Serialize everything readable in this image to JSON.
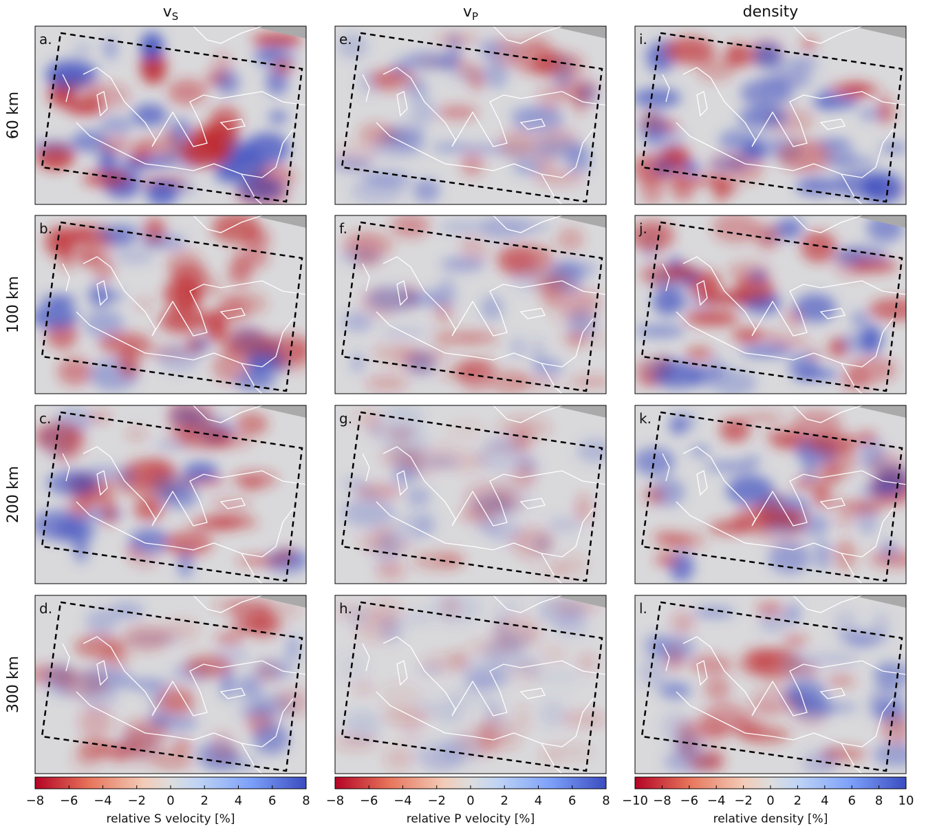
{
  "columns": [
    {
      "title": {
        "main": "v",
        "sub": "S"
      },
      "panels": [
        "a.",
        "b.",
        "c.",
        "d."
      ],
      "colorbar": {
        "lim": [
          -8,
          8
        ],
        "ticks": [
          {
            "value": -8,
            "label": "−8"
          },
          {
            "value": -6,
            "label": "−6"
          },
          {
            "value": -4,
            "label": "−4"
          },
          {
            "value": -2,
            "label": "−2"
          },
          0,
          2,
          4,
          6,
          8
        ],
        "label": "relative S velocity [%]"
      }
    },
    {
      "title": {
        "main": "v",
        "sub": "P"
      },
      "panels": [
        "e.",
        "f.",
        "g.",
        "h."
      ],
      "colorbar": {
        "lim": [
          -8,
          8
        ],
        "ticks": [
          {
            "value": -8,
            "label": "−8"
          },
          {
            "value": -6,
            "label": "−6"
          },
          {
            "value": -4,
            "label": "−4"
          },
          {
            "value": -2,
            "label": "−2"
          },
          0,
          2,
          4,
          6,
          8
        ],
        "label": "relative P velocity [%]"
      }
    },
    {
      "title": {
        "main": "density"
      },
      "panels": [
        "i.",
        "j.",
        "k.",
        "l."
      ],
      "colorbar": {
        "lim": [
          -10,
          10
        ],
        "ticks": [
          {
            "value": -10,
            "label": "−10"
          },
          {
            "value": -8,
            "label": "−8"
          },
          {
            "value": -6,
            "label": "−6"
          },
          {
            "value": -4,
            "label": "−4"
          },
          {
            "value": -2,
            "label": "−2"
          },
          0,
          2,
          4,
          6,
          8,
          10
        ],
        "label": "relative density [%]"
      }
    }
  ],
  "rows": [
    "60 km",
    "100 km",
    "200 km",
    "300 km"
  ]
}
